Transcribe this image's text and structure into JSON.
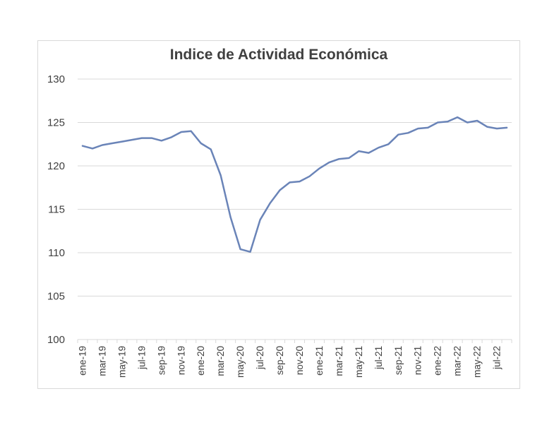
{
  "chart_data": {
    "type": "line",
    "title": "Indice de Actividad Económica",
    "xlabel": "",
    "ylabel": "",
    "ylim": [
      100,
      130
    ],
    "yticks": [
      100,
      105,
      110,
      115,
      120,
      125,
      130
    ],
    "grid": true,
    "legend": "none",
    "x": [
      "ene-19",
      "feb-19",
      "mar-19",
      "abr-19",
      "may-19",
      "jun-19",
      "jul-19",
      "ago-19",
      "sep-19",
      "oct-19",
      "nov-19",
      "dic-19",
      "ene-20",
      "feb-20",
      "mar-20",
      "abr-20",
      "may-20",
      "jun-20",
      "jul-20",
      "ago-20",
      "sep-20",
      "oct-20",
      "nov-20",
      "dic-20",
      "ene-21",
      "feb-21",
      "mar-21",
      "abr-21",
      "may-21",
      "jun-21",
      "jul-21",
      "ago-21",
      "sep-21",
      "oct-21",
      "nov-21",
      "dic-21",
      "ene-22",
      "feb-22",
      "mar-22",
      "abr-22",
      "may-22",
      "jun-22",
      "jul-22",
      "ago-22"
    ],
    "tick_labels": [
      "ene-19",
      "mar-19",
      "may-19",
      "jul-19",
      "sep-19",
      "nov-19",
      "ene-20",
      "mar-20",
      "may-20",
      "jul-20",
      "sep-20",
      "nov-20",
      "ene-21",
      "mar-21",
      "may-21",
      "jul-21",
      "sep-21",
      "nov-21",
      "ene-22",
      "mar-22",
      "may-22",
      "jul-22"
    ],
    "series": [
      {
        "values": [
          122.3,
          122.0,
          122.4,
          122.6,
          122.8,
          123.0,
          123.2,
          123.2,
          122.9,
          123.3,
          123.9,
          124.0,
          122.6,
          121.9,
          118.9,
          114.1,
          110.4,
          110.1,
          113.8,
          115.7,
          117.2,
          118.1,
          118.2,
          118.8,
          119.7,
          120.4,
          120.8,
          120.9,
          121.7,
          121.5,
          122.1,
          122.5,
          123.6,
          123.8,
          124.3,
          124.4,
          125.0,
          125.1,
          125.6,
          125.0,
          125.2,
          124.5,
          124.3,
          124.4
        ],
        "color": "#6a84b8"
      }
    ]
  }
}
